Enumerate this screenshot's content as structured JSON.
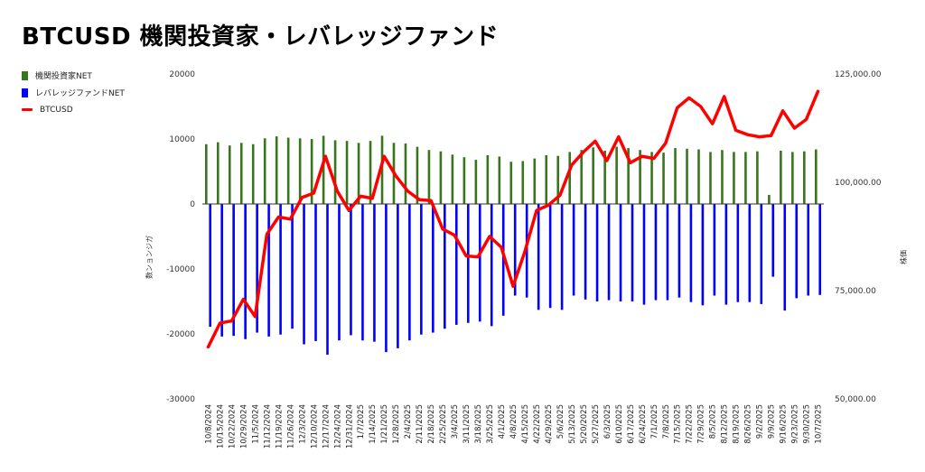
{
  "chart_data": {
    "type": "bar",
    "title": "BTCUSD  機関投資家・レバレッジファンド",
    "y_left_label": "数ンョンジガ",
    "y_right_label": "株価",
    "y_left_lim": [
      -30000,
      20000
    ],
    "y_left_ticks": [
      "20000",
      "10000",
      "0",
      "-10000",
      "-20000",
      "-30000"
    ],
    "y_right_lim": [
      50000,
      125000
    ],
    "y_right_ticks": [
      "125,000.00",
      "100,000.00",
      "75,000.00",
      "50,000.00"
    ],
    "legend_position": "top-left",
    "grid": false,
    "categories": [
      "10/8/2024",
      "10/15/2024",
      "10/22/2024",
      "10/29/2024",
      "11/5/2024",
      "11/12/2024",
      "11/19/2024",
      "11/26/2024",
      "12/3/2024",
      "12/10/2024",
      "12/17/2024",
      "12/24/2024",
      "12/31/2024",
      "1/7/2025",
      "1/14/2025",
      "1/21/2025",
      "1/28/2025",
      "2/4/2025",
      "2/11/2025",
      "2/18/2025",
      "2/25/2025",
      "3/4/2025",
      "3/11/2025",
      "3/18/2025",
      "3/25/2025",
      "4/1/2025",
      "4/8/2025",
      "4/15/2025",
      "4/22/2025",
      "4/29/2025",
      "5/6/2025",
      "5/13/2025",
      "5/20/2025",
      "5/27/2025",
      "6/3/2025",
      "6/10/2025",
      "6/17/2025",
      "6/24/2025",
      "7/1/2025",
      "7/8/2025",
      "7/15/2025",
      "7/22/2025",
      "7/29/2025",
      "8/5/2025",
      "8/12/2025",
      "8/19/2025",
      "8/26/2025",
      "9/2/2025",
      "9/9/2025",
      "9/16/2025",
      "9/23/2025",
      "9/30/2025",
      "10/7/2025"
    ],
    "series": [
      {
        "name": "機関投資家NET",
        "axis": "left",
        "kind": "bar",
        "color": "#38761d",
        "values": [
          9200,
          9500,
          9000,
          9400,
          9200,
          10100,
          10400,
          10200,
          10100,
          10000,
          10500,
          9800,
          9700,
          9400,
          9700,
          10500,
          9400,
          9300,
          8800,
          8300,
          8100,
          7600,
          7200,
          6800,
          7500,
          7300,
          6500,
          6600,
          7000,
          7500,
          7400,
          8000,
          8300,
          8700,
          8200,
          8800,
          8600,
          8300,
          8000,
          7900,
          8600,
          8500,
          8400,
          8000,
          8300,
          8000,
          8000,
          8100,
          1400,
          8200,
          8000,
          8100,
          8400
        ]
      },
      {
        "name": "レバレッジファンドNET",
        "axis": "left",
        "kind": "bar",
        "color": "#0000ff",
        "values": [
          -18900,
          -20400,
          -20300,
          -20800,
          -19800,
          -20400,
          -20100,
          -19200,
          -21600,
          -21100,
          -23200,
          -21000,
          -20200,
          -21000,
          -21200,
          -22800,
          -22200,
          -21000,
          -20100,
          -19800,
          -19200,
          -18600,
          -18300,
          -18100,
          -18800,
          -17200,
          -14100,
          -14400,
          -16300,
          -16000,
          -16300,
          -14100,
          -14700,
          -15000,
          -14800,
          -15000,
          -15000,
          -15500,
          -14800,
          -14800,
          -14400,
          -15100,
          -15600,
          -14100,
          -15500,
          -15100,
          -15100,
          -15400,
          -11200,
          -16400,
          -14500,
          -14100,
          -14000
        ]
      },
      {
        "name": "BTCUSD",
        "axis": "right",
        "kind": "line",
        "color": "#ff0000",
        "values": [
          62000,
          67500,
          68000,
          73000,
          69000,
          88000,
          92000,
          91500,
          96500,
          97500,
          106000,
          98000,
          93500,
          96800,
          96300,
          106000,
          101500,
          98000,
          96000,
          95800,
          89200,
          87800,
          83000,
          82800,
          87500,
          85000,
          76000,
          84000,
          93500,
          94700,
          97000,
          104000,
          107000,
          109500,
          105000,
          110500,
          104500,
          106000,
          105500,
          109000,
          117200,
          119500,
          117500,
          113500,
          119800,
          112000,
          111000,
          110500,
          110800,
          116500,
          112500,
          114500,
          121000
        ]
      }
    ]
  }
}
